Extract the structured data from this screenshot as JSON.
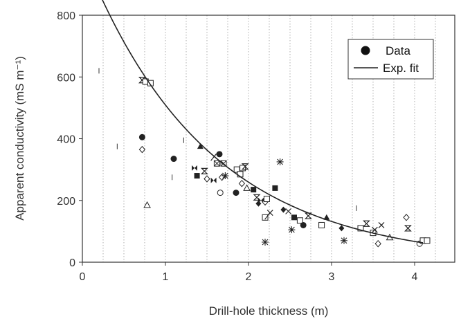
{
  "chart_data": {
    "type": "scatter",
    "title": "",
    "xlabel": "Drill-hole thickness (m)",
    "ylabel": "Apparent conductivity (mS m⁻¹)",
    "xlim": [
      0,
      4.5
    ],
    "ylim": [
      0,
      800
    ],
    "xticks": [
      "0",
      "1",
      "2",
      "3",
      "4"
    ],
    "yticks": [
      "0",
      "200",
      "400",
      "600",
      "800"
    ],
    "grid": "vertical dotted lines every 0.25 m",
    "legend_position": "top-right",
    "legend": [
      "Data",
      "Exp. fit"
    ],
    "series": [
      {
        "name": "Data",
        "marker_note": "mixed marker symbols",
        "points": [
          {
            "x": 0.2,
            "y": 620,
            "m": "bar"
          },
          {
            "x": 0.42,
            "y": 375,
            "m": "bar"
          },
          {
            "x": 0.72,
            "y": 405,
            "m": "circle"
          },
          {
            "x": 0.72,
            "y": 590,
            "m": "hourglass"
          },
          {
            "x": 0.76,
            "y": 585,
            "m": "square"
          },
          {
            "x": 0.82,
            "y": 580,
            "m": "square"
          },
          {
            "x": 0.72,
            "y": 365,
            "m": "diamond"
          },
          {
            "x": 0.78,
            "y": 185,
            "m": "triangle"
          },
          {
            "x": 1.1,
            "y": 335,
            "m": "circle"
          },
          {
            "x": 1.08,
            "y": 275,
            "m": "bar"
          },
          {
            "x": 1.22,
            "y": 395,
            "m": "bar"
          },
          {
            "x": 1.38,
            "y": 280,
            "m": "square-filled"
          },
          {
            "x": 1.42,
            "y": 375,
            "m": "triangle-filled"
          },
          {
            "x": 1.35,
            "y": 305,
            "m": "bowtie"
          },
          {
            "x": 1.47,
            "y": 295,
            "m": "hourglass"
          },
          {
            "x": 1.5,
            "y": 270,
            "m": "diamond"
          },
          {
            "x": 1.58,
            "y": 265,
            "m": "bowtie"
          },
          {
            "x": 1.58,
            "y": 340,
            "m": "slash"
          },
          {
            "x": 1.65,
            "y": 350,
            "m": "circle"
          },
          {
            "x": 1.62,
            "y": 320,
            "m": "square-x"
          },
          {
            "x": 1.7,
            "y": 320,
            "m": "square-x"
          },
          {
            "x": 1.68,
            "y": 275,
            "m": "diamond"
          },
          {
            "x": 1.72,
            "y": 280,
            "m": "asterisk"
          },
          {
            "x": 1.66,
            "y": 225,
            "m": "circle-open"
          },
          {
            "x": 1.85,
            "y": 225,
            "m": "circle"
          },
          {
            "x": 1.86,
            "y": 300,
            "m": "square"
          },
          {
            "x": 1.9,
            "y": 285,
            "m": "square"
          },
          {
            "x": 1.93,
            "y": 305,
            "m": "square"
          },
          {
            "x": 1.96,
            "y": 310,
            "m": "hourglass"
          },
          {
            "x": 1.92,
            "y": 255,
            "m": "diamond"
          },
          {
            "x": 1.98,
            "y": 240,
            "m": "triangle"
          },
          {
            "x": 2.06,
            "y": 235,
            "m": "square-filled"
          },
          {
            "x": 2.1,
            "y": 210,
            "m": "hourglass"
          },
          {
            "x": 2.15,
            "y": 200,
            "m": "bowtie"
          },
          {
            "x": 2.12,
            "y": 190,
            "m": "diamond-filled"
          },
          {
            "x": 2.2,
            "y": 195,
            "m": "diamond"
          },
          {
            "x": 2.22,
            "y": 205,
            "m": "square"
          },
          {
            "x": 2.2,
            "y": 145,
            "m": "square"
          },
          {
            "x": 2.23,
            "y": 150,
            "m": "slash"
          },
          {
            "x": 2.26,
            "y": 160,
            "m": "cross"
          },
          {
            "x": 2.32,
            "y": 240,
            "m": "square-filled"
          },
          {
            "x": 2.38,
            "y": 325,
            "m": "asterisk"
          },
          {
            "x": 2.2,
            "y": 65,
            "m": "asterisk"
          },
          {
            "x": 2.42,
            "y": 170,
            "m": "diamond-filled"
          },
          {
            "x": 2.48,
            "y": 165,
            "m": "cross"
          },
          {
            "x": 2.55,
            "y": 145,
            "m": "square-filled"
          },
          {
            "x": 2.52,
            "y": 105,
            "m": "asterisk"
          },
          {
            "x": 2.62,
            "y": 135,
            "m": "square"
          },
          {
            "x": 2.66,
            "y": 120,
            "m": "circle"
          },
          {
            "x": 2.72,
            "y": 150,
            "m": "hourglass"
          },
          {
            "x": 2.94,
            "y": 145,
            "m": "triangle-filled"
          },
          {
            "x": 2.88,
            "y": 120,
            "m": "square"
          },
          {
            "x": 3.12,
            "y": 110,
            "m": "diamond-filled"
          },
          {
            "x": 3.15,
            "y": 70,
            "m": "asterisk"
          },
          {
            "x": 3.3,
            "y": 175,
            "m": "bar"
          },
          {
            "x": 3.35,
            "y": 110,
            "m": "square"
          },
          {
            "x": 3.42,
            "y": 125,
            "m": "hourglass"
          },
          {
            "x": 3.5,
            "y": 95,
            "m": "square"
          },
          {
            "x": 3.52,
            "y": 105,
            "m": "cross"
          },
          {
            "x": 3.56,
            "y": 60,
            "m": "diamond"
          },
          {
            "x": 3.6,
            "y": 120,
            "m": "cross"
          },
          {
            "x": 3.7,
            "y": 80,
            "m": "triangle"
          },
          {
            "x": 3.9,
            "y": 145,
            "m": "diamond"
          },
          {
            "x": 3.92,
            "y": 110,
            "m": "hourglass"
          },
          {
            "x": 4.06,
            "y": 60,
            "m": "circle-open"
          },
          {
            "x": 4.1,
            "y": 70,
            "m": "square"
          },
          {
            "x": 4.15,
            "y": 70,
            "m": "square"
          }
        ]
      },
      {
        "name": "Exp. fit",
        "type": "line",
        "a": 1000,
        "b": 0.675,
        "x_range": [
          0.21,
          4.1
        ]
      }
    ]
  }
}
